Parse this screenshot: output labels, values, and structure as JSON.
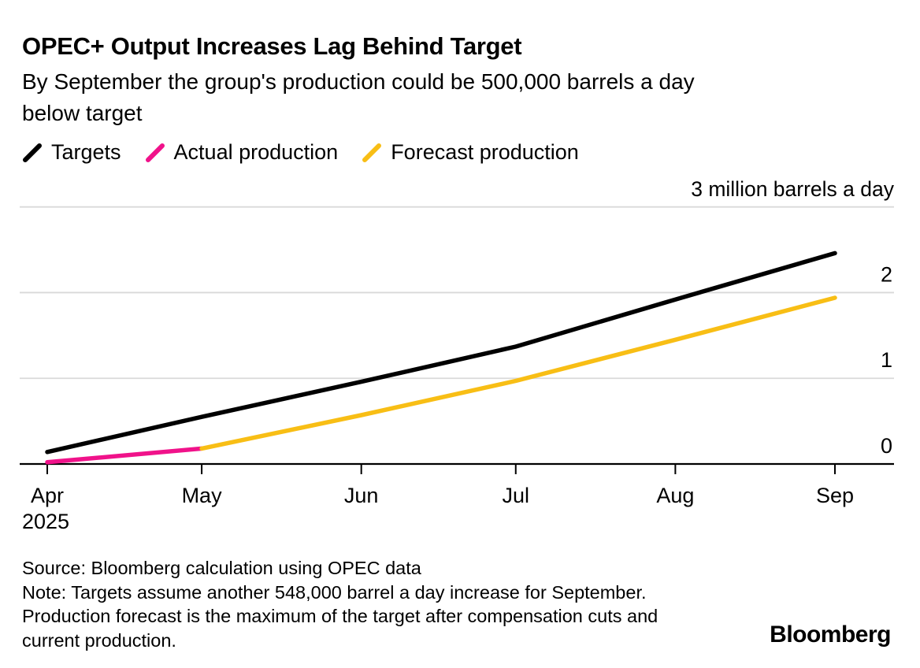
{
  "chart_data": {
    "type": "line",
    "title": "OPEC+ Output Increases Lag Behind Target",
    "subtitle": "By September the group's production could be 500,000 barrels a day below target",
    "subtitle_lines": [
      "By September the group's production could be 500,000 barrels a day",
      "below target"
    ],
    "unit_label": "3 million barrels a day",
    "x_axis": {
      "tick_labels": [
        "Apr",
        "May",
        "Jun",
        "Jul",
        "Aug",
        "Sep"
      ],
      "year_label": "2025",
      "tick_days": [
        0,
        30,
        61,
        91,
        122,
        153
      ]
    },
    "y_axis": {
      "tick_labels": [
        "2",
        "1",
        "0"
      ],
      "tick_values": [
        2,
        1,
        0
      ],
      "top_gridline_value": 3,
      "range": [
        0,
        3
      ],
      "unit": "million barrels a day",
      "grid": true
    },
    "legend_position": "top-left",
    "series": [
      {
        "name": "Targets",
        "color": "#000000",
        "points": [
          {
            "day": 0,
            "value": 0.14
          },
          {
            "day": 30,
            "value": 0.55
          },
          {
            "day": 61,
            "value": 0.96
          },
          {
            "day": 91,
            "value": 1.37
          },
          {
            "day": 122,
            "value": 1.92
          },
          {
            "day": 153,
            "value": 2.46
          }
        ]
      },
      {
        "name": "Actual production",
        "color": "#F0128A",
        "points": [
          {
            "day": 0,
            "value": 0.02
          },
          {
            "day": 30,
            "value": 0.18
          }
        ]
      },
      {
        "name": "Forecast production",
        "color": "#F8BE15",
        "points": [
          {
            "day": 30,
            "value": 0.18
          },
          {
            "day": 61,
            "value": 0.57
          },
          {
            "day": 91,
            "value": 0.97
          },
          {
            "day": 122,
            "value": 1.45
          },
          {
            "day": 153,
            "value": 1.94
          }
        ]
      }
    ],
    "colors": {
      "grid": "#D9D9D9",
      "axis": "#000000"
    }
  },
  "footer": {
    "lines": [
      "Source: Bloomberg calculation using OPEC data",
      "Note: Targets assume another 548,000 barrel a day increase for September.",
      "Production forecast is the maximum of the target after compensation cuts and",
      "current production."
    ],
    "logo": "Bloomberg"
  }
}
